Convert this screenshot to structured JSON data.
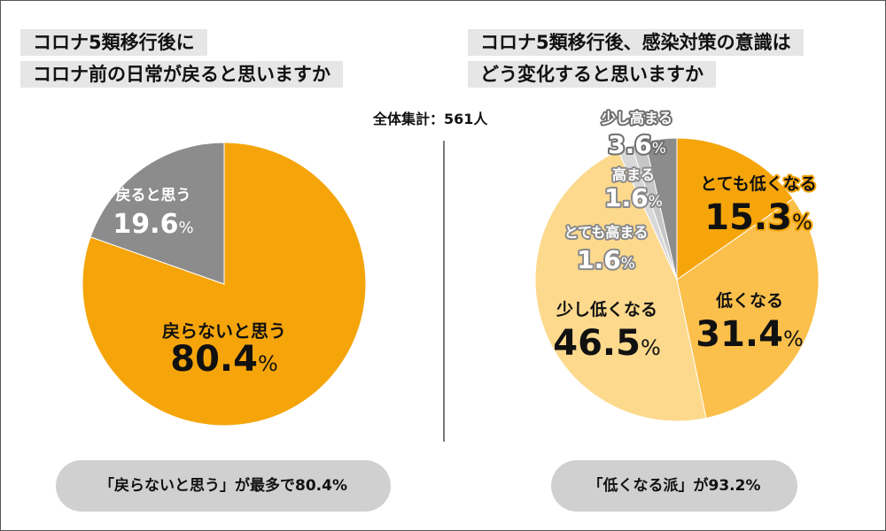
{
  "left": {
    "title_line1": "コロナ5類移行後に",
    "title_line2": "コロナ前の日常が戻ると思いますか",
    "summary": "「戻らないと思う」が最多で80.4%"
  },
  "right": {
    "title_line1": "コロナ5類移行後、感染対策の意識は",
    "title_line2": "どう変化すると思いますか",
    "summary": "「低くなる派」が93.2%"
  },
  "total_label": "全体集計：561人",
  "colors": {
    "orange": "#f5a50a",
    "orange_mid": "#fbc04c",
    "orange_light": "#fcd98d",
    "gray": "#8c8c8c",
    "gray_light": "#c6c6c6",
    "gray_pale": "#d8d8d8",
    "pill": "#d0d0d0"
  },
  "chart_data": [
    {
      "type": "pie",
      "title": "コロナ5類移行後にコロナ前の日常が戻ると思いますか",
      "unit": "%",
      "slices": [
        {
          "label": "戻らないと思う",
          "value": 80.4,
          "color": "#f5a50a"
        },
        {
          "label": "戻ると思う",
          "value": 19.6,
          "color": "#8c8c8c"
        }
      ]
    },
    {
      "type": "pie",
      "title": "コロナ5類移行後、感染対策の意識はどう変化すると思いますか",
      "unit": "%",
      "slices": [
        {
          "label": "とても低くなる",
          "value": 15.3,
          "color": "#f5a50a"
        },
        {
          "label": "低くなる",
          "value": 31.4,
          "color": "#fbc04c"
        },
        {
          "label": "少し低くなる",
          "value": 46.5,
          "color": "#fcd98d"
        },
        {
          "label": "とても高まる",
          "value": 1.6,
          "color": "#d8d8d8"
        },
        {
          "label": "高まる",
          "value": 1.6,
          "color": "#c6c6c6"
        },
        {
          "label": "少し高まる",
          "value": 3.6,
          "color": "#8c8c8c"
        }
      ]
    }
  ]
}
